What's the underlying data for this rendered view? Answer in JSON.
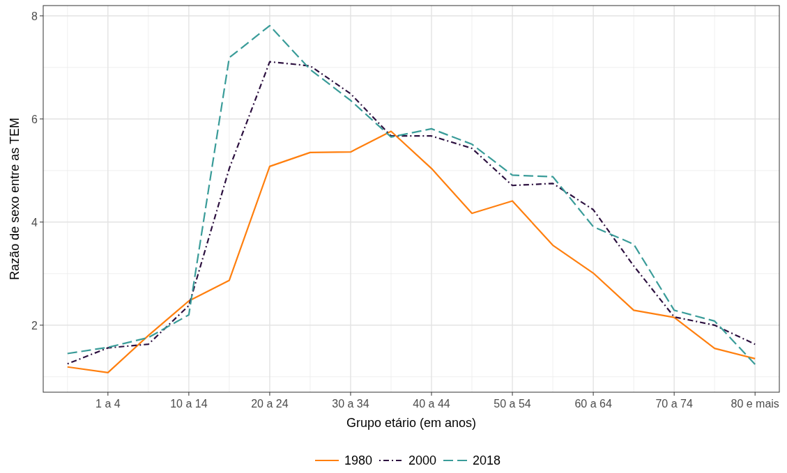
{
  "chart_data": {
    "type": "line",
    "xlabel": "Grupo etário (em anos)",
    "ylabel": "Razão de sexo entre as TEM",
    "categories": [
      null,
      "1 a 4",
      null,
      "10 a 14",
      null,
      "20 a 24",
      null,
      "30 a 34",
      null,
      "40 a 44",
      null,
      "50 a 54",
      null,
      "60 a 64",
      null,
      "70 a 74",
      null,
      "80 e mais"
    ],
    "ylim": [
      0.7,
      8.2
    ],
    "yticks": [
      2,
      4,
      6,
      8
    ],
    "grid": true,
    "legend": "bottom",
    "marker": "none",
    "series": [
      {
        "name": "1980",
        "color": "#ff7f0e",
        "line_style": "solid",
        "values": [
          1.19,
          1.08,
          1.8,
          2.47,
          2.87,
          5.08,
          5.35,
          5.36,
          5.76,
          5.04,
          4.17,
          4.41,
          3.55,
          3.01,
          2.29,
          2.15,
          1.55,
          1.35
        ]
      },
      {
        "name": "2000",
        "color": "#2d1140",
        "line_style": "dashdot",
        "values": [
          1.25,
          1.56,
          1.63,
          2.38,
          5.04,
          7.11,
          7.03,
          6.49,
          5.67,
          5.67,
          5.43,
          4.71,
          4.75,
          4.24,
          3.15,
          2.16,
          2.0,
          1.63
        ]
      },
      {
        "name": "2018",
        "color": "#3a9c99",
        "line_style": "dashed",
        "values": [
          1.45,
          1.57,
          1.76,
          2.2,
          7.19,
          7.81,
          6.96,
          6.36,
          5.65,
          5.81,
          5.51,
          4.91,
          4.88,
          3.91,
          3.57,
          2.29,
          2.08,
          1.24
        ]
      }
    ]
  }
}
